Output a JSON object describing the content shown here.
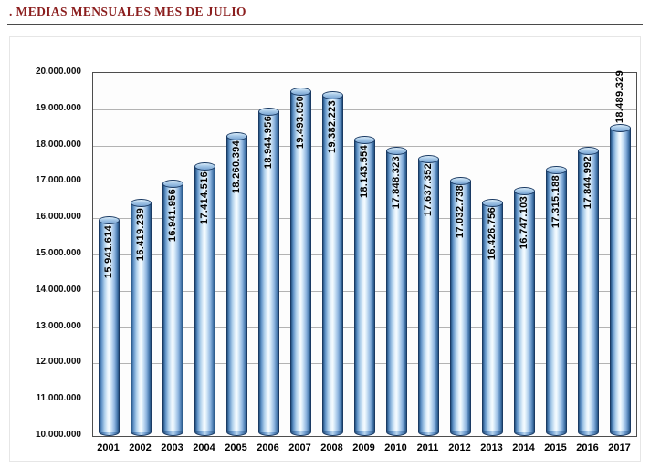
{
  "title": ". MEDIAS MENSUALES MES DE JULIO",
  "chart_data": {
    "type": "bar",
    "bar_style": "cylinder-3d",
    "title": ". MEDIAS MENSUALES MES DE JULIO",
    "categories": [
      "2001",
      "2002",
      "2003",
      "2004",
      "2005",
      "2006",
      "2007",
      "2008",
      "2009",
      "2010",
      "2011",
      "2012",
      "2013",
      "2014",
      "2015",
      "2016",
      "2017"
    ],
    "values": [
      15941614,
      16419239,
      16941956,
      17414516,
      18260394,
      18944956,
      19493050,
      19382223,
      18143554,
      17848323,
      17637352,
      17032738,
      16426756,
      16747103,
      17315188,
      17844992,
      18489329
    ],
    "value_labels": [
      "15.941.614",
      "16.419.239",
      "16.941.956",
      "17.414.516",
      "18.260.394",
      "18.944.956",
      "19.493.050",
      "19.382.223",
      "18.143.554",
      "17.848.323",
      "17.637.352",
      "17.032.738",
      "16.426.756",
      "16.747.103",
      "17.315.188",
      "17.844.992",
      "18.489.329"
    ],
    "xlabel": "",
    "ylabel": "",
    "ylim": [
      10000000,
      20000000
    ],
    "ytick_step": 1000000,
    "ytick_labels": [
      "10.000.000",
      "11.000.000",
      "12.000.000",
      "13.000.000",
      "14.000.000",
      "15.000.000",
      "16.000.000",
      "17.000.000",
      "18.000.000",
      "19.000.000",
      "20.000.000"
    ],
    "grid": true,
    "legend": "none",
    "value_label_orientation": "vertical-bottom-to-top",
    "last_label_outside": true,
    "colors": {
      "title_text": "#8b1e1e",
      "bar_fill_light": "#f5fbff",
      "bar_fill_dark": "#24517f",
      "bar_edge": "#1a3a63",
      "grid_line": "#b3b3b3",
      "axis_line": "#4d4d4d",
      "label_text": "#000000"
    }
  }
}
